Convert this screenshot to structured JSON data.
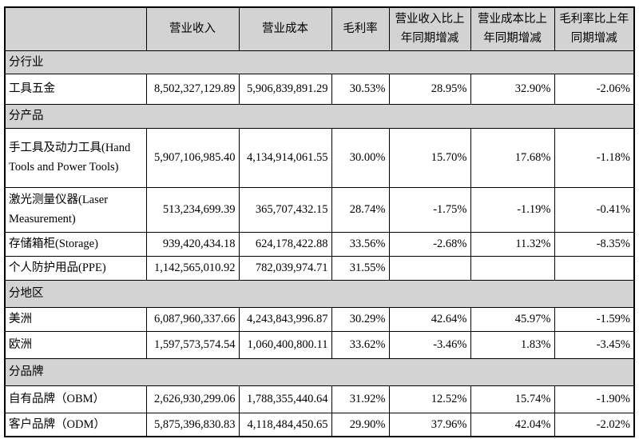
{
  "table": {
    "columns": [
      {
        "label": ""
      },
      {
        "label": "营业收入"
      },
      {
        "label": "营业成本"
      },
      {
        "label": "毛利率"
      },
      {
        "label": "营业收入比上年同期增减"
      },
      {
        "label": "营业成本比上年同期增减"
      },
      {
        "label": "毛利率比上年同期增减"
      }
    ],
    "rows": [
      {
        "type": "section",
        "label": "分行业"
      },
      {
        "type": "data",
        "label": "工具五金",
        "values": [
          "8,502,327,129.89",
          "5,906,839,891.29",
          "30.53%",
          "28.95%",
          "32.90%",
          "-2.06%"
        ]
      },
      {
        "type": "section",
        "label": "分产品"
      },
      {
        "type": "data",
        "label": "手工具及动力工具(Hand Tools and Power Tools)",
        "values": [
          "5,907,106,985.40",
          "4,134,914,061.55",
          "30.00%",
          "15.70%",
          "17.68%",
          "-1.18%"
        ]
      },
      {
        "type": "data",
        "label": "激光测量仪器(Laser Measurement)",
        "values": [
          "513,234,699.39",
          "365,707,432.15",
          "28.74%",
          "-1.75%",
          "-1.19%",
          "-0.41%"
        ]
      },
      {
        "type": "data",
        "label": "存储箱柜(Storage)",
        "values": [
          "939,420,434.18",
          "624,178,422.88",
          "33.56%",
          "-2.68%",
          "11.32%",
          "-8.35%"
        ]
      },
      {
        "type": "data",
        "label": "个人防护用品(PPE)",
        "values": [
          "1,142,565,010.92",
          "782,039,974.71",
          "31.55%",
          "",
          "",
          ""
        ]
      },
      {
        "type": "section",
        "label": "分地区"
      },
      {
        "type": "data",
        "label": "美洲",
        "values": [
          "6,087,960,337.66",
          "4,243,843,996.87",
          "30.29%",
          "42.64%",
          "45.97%",
          "-1.59%"
        ]
      },
      {
        "type": "data",
        "label": "欧洲",
        "values": [
          "1,597,573,574.54",
          "1,060,400,800.11",
          "33.62%",
          "-3.46%",
          "1.83%",
          "-3.45%"
        ]
      },
      {
        "type": "section",
        "label": "分品牌"
      },
      {
        "type": "data",
        "label": "自有品牌（OBM）",
        "values": [
          "2,626,930,299.06",
          "1,788,355,440.64",
          "31.92%",
          "12.52%",
          "15.74%",
          "-1.90%"
        ]
      },
      {
        "type": "data",
        "label": "客户品牌（ODM）",
        "values": [
          "5,875,396,830.83",
          "4,118,484,450.65",
          "29.90%",
          "37.96%",
          "42.04%",
          "-2.02%"
        ]
      }
    ],
    "colors": {
      "header_bg": "#d3d3d3",
      "border": "#000000"
    }
  }
}
